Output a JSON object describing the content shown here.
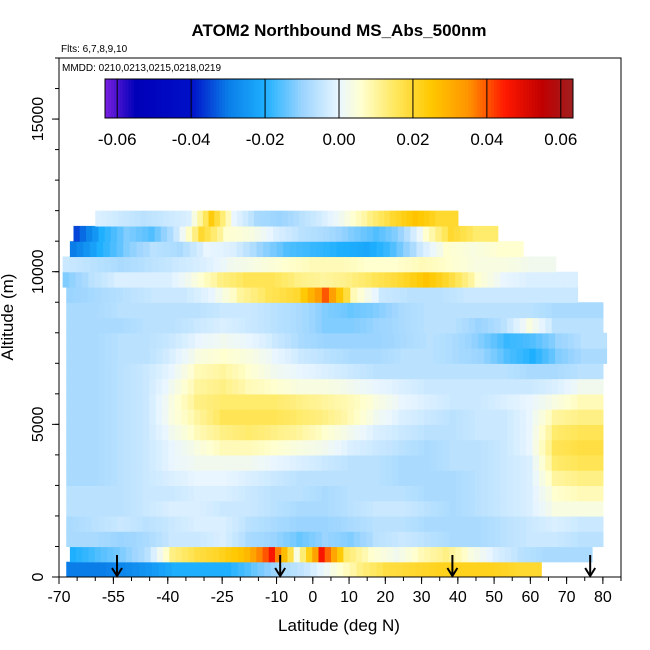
{
  "chart_data": {
    "type": "heatmap",
    "title": "ATOM2 Northbound MS_Abs_500nm",
    "subtitle": "Flts: 6,7,8,9,10",
    "annotation": "MMDD: 0210,0213,0215,0218,0219",
    "xlabel": "Latitude (deg N)",
    "ylabel": "Altitude (m)",
    "xlim": [
      -70,
      85
    ],
    "ylim": [
      0,
      17000
    ],
    "xticks": [
      "-70",
      "-55",
      "-40",
      "-25",
      "-10",
      "0",
      "10",
      "20",
      "30",
      "40",
      "50",
      "60",
      "70",
      "80"
    ],
    "yticks": [
      "0",
      "5000",
      "10000",
      "15000"
    ],
    "colorbar": {
      "range": [
        -0.0633,
        0.0633
      ],
      "ticks": [
        "-0.06",
        "-0.04",
        "-0.02",
        "0.00",
        "0.02",
        "0.04",
        "0.06"
      ],
      "stops": [
        {
          "v": -0.0633,
          "c": "#7a1fe0"
        },
        {
          "v": -0.055,
          "c": "#0000b8"
        },
        {
          "v": -0.04,
          "c": "#0010c8"
        },
        {
          "v": -0.03,
          "c": "#0a7de8"
        },
        {
          "v": -0.02,
          "c": "#1eb0ff"
        },
        {
          "v": -0.01,
          "c": "#9ad4ff"
        },
        {
          "v": 0.0,
          "c": "#eaf6ff"
        },
        {
          "v": 0.006,
          "c": "#ffffd0"
        },
        {
          "v": 0.015,
          "c": "#ffe860"
        },
        {
          "v": 0.025,
          "c": "#ffc800"
        },
        {
          "v": 0.035,
          "c": "#ff9400"
        },
        {
          "v": 0.045,
          "c": "#ff1800"
        },
        {
          "v": 0.055,
          "c": "#c00000"
        },
        {
          "v": 0.0633,
          "c": "#a02020"
        }
      ]
    },
    "rows": [
      {
        "alt": 250,
        "lat0": -68,
        "lat1": 63,
        "vals": [
          -0.03,
          -0.03,
          -0.028,
          -0.025,
          -0.02,
          -0.02,
          -0.02,
          -0.014,
          -0.008,
          -0.004,
          0.004,
          0.012,
          0.018,
          0.02,
          0.022,
          0.022,
          0.022,
          0.02
        ]
      },
      {
        "alt": 750,
        "lat0": -67,
        "lat1": 77,
        "vals": [
          -0.02,
          -0.016,
          -0.012,
          -0.006,
          0.012,
          0.018,
          0.022,
          0.028,
          0.046,
          0.004,
          0.046,
          0.014,
          0.006,
          0.002,
          0.008,
          0.012,
          0.004,
          -0.002,
          -0.006,
          -0.008,
          -0.008
        ]
      },
      {
        "alt": 1250,
        "lat0": -68,
        "lat1": 80,
        "vals": [
          -0.008,
          -0.008,
          -0.01,
          -0.008,
          -0.004,
          -0.004,
          -0.002,
          -0.008,
          -0.01,
          -0.014,
          -0.01,
          -0.012,
          -0.006,
          -0.004,
          -0.006,
          -0.008,
          -0.008,
          -0.006,
          -0.004,
          -0.004,
          -0.006
        ]
      },
      {
        "alt": 1750,
        "lat0": -68,
        "lat1": 80,
        "vals": [
          -0.008,
          -0.006,
          -0.004,
          -0.006,
          -0.004,
          -0.002,
          -0.002,
          -0.006,
          -0.008,
          -0.01,
          -0.01,
          -0.008,
          -0.006,
          -0.006,
          -0.008,
          -0.008,
          -0.008,
          -0.006,
          -0.004,
          -0.002,
          -0.004
        ]
      },
      {
        "alt": 2250,
        "lat0": -68,
        "lat1": 80,
        "vals": [
          -0.006,
          -0.006,
          -0.006,
          -0.004,
          -0.002,
          -0.002,
          -0.004,
          -0.004,
          -0.006,
          -0.008,
          -0.008,
          -0.006,
          -0.004,
          -0.004,
          -0.006,
          -0.008,
          -0.006,
          -0.004,
          -0.002,
          0.004,
          0.004
        ]
      },
      {
        "alt": 2750,
        "lat0": -68,
        "lat1": 80,
        "vals": [
          -0.006,
          -0.006,
          -0.006,
          -0.004,
          -0.004,
          -0.002,
          -0.002,
          -0.004,
          -0.006,
          -0.006,
          -0.008,
          -0.006,
          -0.006,
          -0.006,
          -0.008,
          -0.008,
          -0.006,
          -0.004,
          -0.002,
          0.006,
          0.008
        ]
      },
      {
        "alt": 3250,
        "lat0": -68,
        "lat1": 80,
        "vals": [
          -0.008,
          -0.008,
          -0.006,
          -0.004,
          -0.002,
          0.0,
          0.0,
          -0.002,
          -0.004,
          -0.006,
          -0.006,
          -0.006,
          -0.006,
          -0.008,
          -0.008,
          -0.008,
          -0.006,
          -0.004,
          -0.002,
          0.01,
          0.012
        ]
      },
      {
        "alt": 3750,
        "lat0": -68,
        "lat1": 80,
        "vals": [
          -0.008,
          -0.008,
          -0.006,
          -0.004,
          0.0,
          0.002,
          0.002,
          0.002,
          0.0,
          -0.002,
          -0.004,
          -0.006,
          -0.006,
          -0.008,
          -0.008,
          -0.006,
          -0.006,
          -0.004,
          -0.002,
          0.014,
          0.016
        ]
      },
      {
        "alt": 4250,
        "lat0": -68,
        "lat1": 80,
        "vals": [
          -0.008,
          -0.008,
          -0.006,
          -0.004,
          0.0,
          0.004,
          0.008,
          0.008,
          0.006,
          0.004,
          0.002,
          -0.002,
          -0.004,
          -0.006,
          -0.008,
          -0.006,
          -0.006,
          -0.004,
          0.0,
          0.016,
          0.018
        ]
      },
      {
        "alt": 4750,
        "lat0": -68,
        "lat1": 80,
        "vals": [
          -0.008,
          -0.008,
          -0.006,
          -0.004,
          0.002,
          0.008,
          0.012,
          0.014,
          0.012,
          0.01,
          0.006,
          0.002,
          -0.002,
          -0.004,
          -0.006,
          -0.006,
          -0.004,
          -0.004,
          0.0,
          0.014,
          0.016
        ]
      },
      {
        "alt": 5250,
        "lat0": -68,
        "lat1": 80,
        "vals": [
          -0.008,
          -0.008,
          -0.006,
          -0.004,
          0.004,
          0.01,
          0.016,
          0.016,
          0.016,
          0.014,
          0.012,
          0.008,
          0.002,
          -0.002,
          -0.004,
          -0.006,
          -0.004,
          -0.004,
          0.0,
          0.01,
          0.012
        ]
      },
      {
        "alt": 5750,
        "lat0": -68,
        "lat1": 80,
        "vals": [
          -0.008,
          -0.008,
          -0.006,
          -0.004,
          0.004,
          0.012,
          0.014,
          0.014,
          0.014,
          0.012,
          0.01,
          0.008,
          0.004,
          0.0,
          -0.002,
          -0.004,
          -0.004,
          -0.002,
          0.0,
          0.004,
          0.008
        ]
      },
      {
        "alt": 6250,
        "lat0": -68,
        "lat1": 80,
        "vals": [
          -0.008,
          -0.008,
          -0.006,
          -0.004,
          0.002,
          0.01,
          0.012,
          0.008,
          0.006,
          0.004,
          0.004,
          0.002,
          0.0,
          -0.002,
          -0.004,
          -0.004,
          -0.004,
          -0.004,
          -0.004,
          -0.002,
          0.002
        ]
      },
      {
        "alt": 6750,
        "lat0": -68,
        "lat1": 80,
        "vals": [
          -0.008,
          -0.008,
          -0.006,
          -0.004,
          0.0,
          0.008,
          0.01,
          0.006,
          0.002,
          0.0,
          -0.002,
          -0.004,
          -0.006,
          -0.006,
          -0.006,
          -0.006,
          -0.006,
          -0.006,
          -0.008,
          -0.008,
          -0.006
        ]
      },
      {
        "alt": 7250,
        "lat0": -68,
        "lat1": 81,
        "vals": [
          -0.008,
          -0.008,
          -0.006,
          -0.006,
          -0.002,
          0.004,
          0.006,
          0.004,
          0.0,
          -0.004,
          -0.006,
          -0.008,
          -0.008,
          -0.006,
          -0.006,
          -0.008,
          -0.01,
          -0.016,
          -0.02,
          -0.012,
          -0.008
        ]
      },
      {
        "alt": 7750,
        "lat0": -68,
        "lat1": 81,
        "vals": [
          -0.008,
          -0.008,
          -0.006,
          -0.006,
          -0.004,
          0.0,
          0.002,
          0.0,
          -0.004,
          -0.008,
          -0.01,
          -0.01,
          -0.01,
          -0.008,
          -0.006,
          -0.008,
          -0.012,
          -0.018,
          -0.016,
          -0.01,
          -0.006
        ]
      },
      {
        "alt": 8250,
        "lat0": -68,
        "lat1": 80,
        "vals": [
          -0.008,
          -0.008,
          -0.008,
          -0.006,
          -0.006,
          -0.004,
          -0.002,
          -0.004,
          -0.006,
          -0.008,
          -0.012,
          -0.012,
          -0.01,
          -0.008,
          -0.006,
          -0.006,
          -0.01,
          -0.006,
          0.004,
          -0.006,
          -0.006
        ]
      },
      {
        "alt": 8750,
        "lat0": -68,
        "lat1": 80,
        "vals": [
          -0.008,
          -0.008,
          -0.006,
          -0.006,
          -0.006,
          -0.006,
          -0.004,
          -0.004,
          -0.006,
          -0.008,
          -0.012,
          -0.014,
          -0.012,
          -0.008,
          -0.006,
          -0.006,
          -0.006,
          -0.006,
          -0.006,
          -0.008,
          -0.008
        ]
      },
      {
        "alt": 9250,
        "lat0": -68,
        "lat1": 73,
        "vals": [
          -0.01,
          -0.008,
          -0.006,
          -0.004,
          -0.004,
          0.0,
          0.01,
          0.016,
          0.02,
          0.04,
          0.008,
          -0.004,
          -0.006,
          -0.006,
          -0.004,
          -0.004,
          -0.004,
          -0.004
        ]
      },
      {
        "alt": 9750,
        "lat0": -69,
        "lat1": 73,
        "vals": [
          -0.012,
          -0.006,
          -0.002,
          -0.002,
          -0.002,
          0.004,
          0.012,
          0.016,
          0.016,
          0.012,
          0.01,
          0.012,
          0.016,
          0.02,
          0.026,
          0.018,
          0.006,
          0.0,
          -0.002,
          -0.002
        ]
      },
      {
        "alt": 10250,
        "lat0": -69,
        "lat1": 67,
        "vals": [
          -0.004,
          -0.006,
          -0.008,
          -0.006,
          -0.004,
          -0.002,
          0.002,
          0.004,
          0.006,
          0.008,
          0.008,
          0.006,
          0.006,
          0.008,
          0.006,
          0.004,
          0.004,
          0.002
        ]
      },
      {
        "alt": 10750,
        "lat0": -67,
        "lat1": 58,
        "vals": [
          -0.03,
          -0.02,
          -0.012,
          -0.006,
          -0.008,
          0.0,
          -0.002,
          -0.01,
          -0.016,
          -0.018,
          -0.02,
          -0.022,
          -0.016,
          -0.004,
          0.006,
          0.004,
          0.006
        ]
      },
      {
        "alt": 11250,
        "lat0": -66,
        "lat1": 51,
        "vals": [
          -0.035,
          -0.02,
          -0.012,
          -0.016,
          -0.004,
          0.02,
          0.006,
          0.004,
          -0.002,
          -0.006,
          -0.008,
          -0.012,
          -0.016,
          -0.01,
          0.006,
          0.02,
          0.014
        ]
      },
      {
        "alt": 11750,
        "lat0": -60,
        "lat1": 40,
        "vals": [
          -0.002,
          -0.004,
          -0.006,
          -0.004,
          -0.002,
          0.024,
          0.0,
          -0.008,
          -0.01,
          -0.006,
          -0.002,
          0.004,
          0.012,
          0.02,
          0.026,
          0.02
        ]
      }
    ],
    "markers": {
      "type": "arrow-down",
      "lat": [
        -54,
        -9,
        38.5,
        76.5
      ]
    }
  }
}
